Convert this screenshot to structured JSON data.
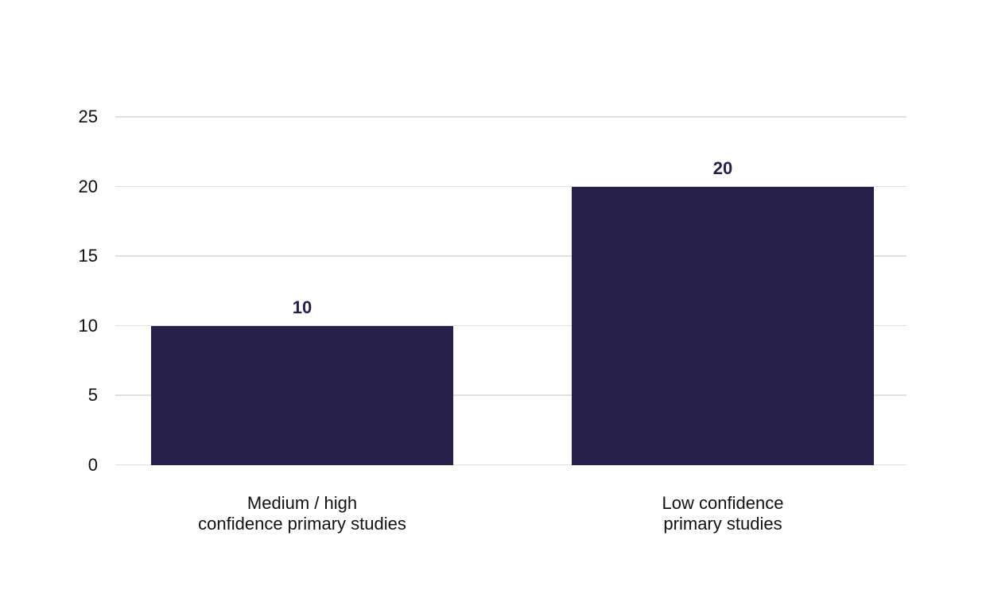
{
  "chart_data": {
    "type": "bar",
    "title": "",
    "xlabel": "",
    "ylabel": "",
    "categories": [
      "Medium / high confidence primary studies",
      "Low confidence primary studies"
    ],
    "category_lines": [
      [
        "Medium / high",
        "confidence primary studies"
      ],
      [
        "Low confidence",
        "primary studies"
      ]
    ],
    "values": [
      10,
      20
    ],
    "bar_value_labels": [
      "10",
      "20"
    ],
    "y_ticks": [
      "0",
      "5",
      "10",
      "15",
      "20",
      "25"
    ],
    "y_tick_values": [
      0,
      5,
      10,
      15,
      20,
      25
    ],
    "ylim": [
      0,
      25
    ],
    "grid": "horizontal",
    "legend": "none",
    "colors": {
      "bar": "#262049",
      "value_label": "#262049",
      "tick_label": "#0f0f0f",
      "category_label": "#111111",
      "gridline": "#e0e0e0",
      "background": "#ffffff"
    }
  }
}
